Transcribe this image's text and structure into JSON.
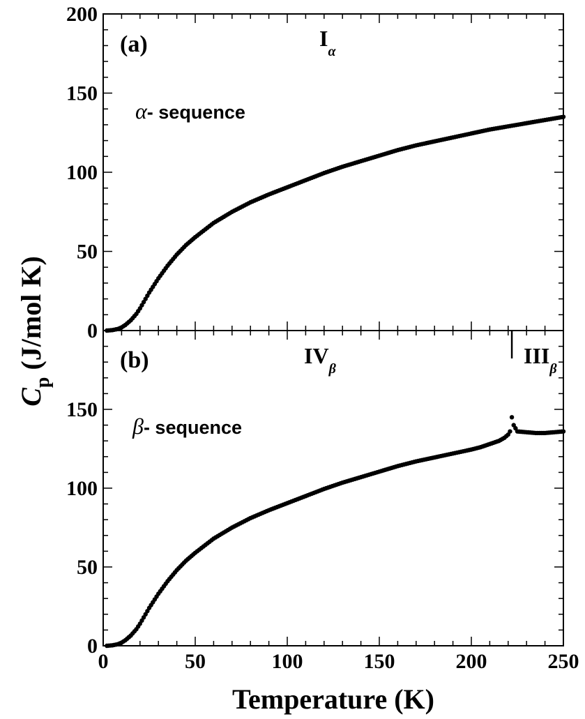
{
  "chart_data": [
    {
      "type": "scatter",
      "panel_label": "(a)",
      "phase_label": {
        "main": "I",
        "sub": "α"
      },
      "sequence_label": {
        "symbol": "α",
        "text": "- sequence"
      },
      "xlim": [
        0,
        250
      ],
      "ylim": [
        0,
        200
      ],
      "xticks": [
        "0",
        "50",
        "100",
        "150",
        "200",
        "250"
      ],
      "yticks": [
        "0",
        "50",
        "100",
        "150",
        "200"
      ],
      "series": [
        {
          "x": [
            2,
            5,
            8,
            10,
            12,
            15,
            18,
            20,
            25,
            30,
            35,
            40,
            45,
            50,
            60,
            70,
            80,
            90,
            100,
            110,
            120,
            130,
            140,
            150,
            160,
            170,
            180,
            190,
            200,
            210,
            220,
            230,
            240,
            250
          ],
          "y": [
            0,
            0.3,
            1,
            2,
            3.5,
            6.5,
            10.5,
            14,
            24,
            33,
            41,
            48,
            54,
            59,
            68,
            75,
            81,
            86,
            90.5,
            95,
            99.5,
            103.5,
            107,
            110.5,
            114,
            117,
            119.5,
            122,
            124.5,
            127,
            129,
            131,
            133,
            135
          ]
        }
      ]
    },
    {
      "type": "scatter",
      "panel_label": "(b)",
      "phase_label": {
        "main": "IV",
        "sub": "β"
      },
      "phase_label2": {
        "main": "III",
        "sub": "β"
      },
      "transition_x": 222,
      "sequence_label": {
        "symbol": "β",
        "text": "- sequence"
      },
      "xlim": [
        0,
        250
      ],
      "ylim": [
        0,
        200
      ],
      "xticks": [
        "0",
        "50",
        "100",
        "150",
        "200",
        "250"
      ],
      "yticks": [
        "0",
        "50",
        "100",
        "150"
      ],
      "xlabel": "Temperature (K)",
      "series": [
        {
          "x": [
            2,
            5,
            8,
            10,
            12,
            15,
            18,
            20,
            25,
            30,
            35,
            40,
            45,
            50,
            60,
            70,
            80,
            90,
            100,
            110,
            120,
            130,
            140,
            150,
            160,
            170,
            180,
            190,
            200,
            205,
            210,
            215,
            218,
            220,
            221,
            222,
            223,
            225,
            230,
            235,
            240,
            245,
            250
          ],
          "y": [
            0,
            0.3,
            1,
            2,
            3.5,
            6.5,
            10.5,
            14,
            24,
            33,
            41,
            48,
            54,
            59,
            68,
            75,
            81,
            86,
            90.5,
            95,
            99.5,
            103.5,
            107,
            110.5,
            114,
            117,
            119.5,
            122,
            124.5,
            126,
            128,
            130,
            132,
            134,
            136,
            145,
            140,
            136,
            135.5,
            135,
            135,
            135.5,
            136
          ]
        }
      ]
    }
  ],
  "shared_ylabel": {
    "main": "C",
    "sub": "p",
    "rest": " (J/mol K)"
  }
}
